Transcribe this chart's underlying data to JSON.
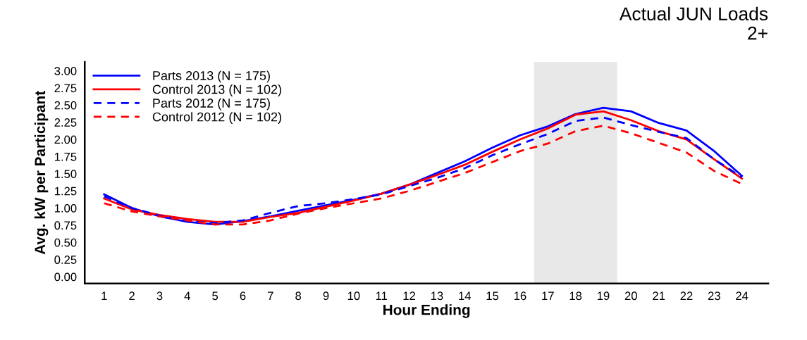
{
  "chart_data": {
    "type": "line",
    "title": "Actual JUN Loads\n2+",
    "xlabel": "Hour Ending",
    "ylabel": "Avg. kW per Participant",
    "x": [
      1,
      2,
      3,
      4,
      5,
      6,
      7,
      8,
      9,
      10,
      11,
      12,
      13,
      14,
      15,
      16,
      17,
      18,
      19,
      20,
      21,
      22,
      23,
      24
    ],
    "series": [
      {
        "name": "Parts 2013 (N = 175)",
        "color": "#0000ff",
        "line_style": "solid",
        "values": [
          1.2,
          1.0,
          0.88,
          0.8,
          0.76,
          0.81,
          0.88,
          0.96,
          1.04,
          1.12,
          1.21,
          1.34,
          1.51,
          1.68,
          1.88,
          2.06,
          2.19,
          2.37,
          2.46,
          2.41,
          2.24,
          2.13,
          1.83,
          1.47
        ]
      },
      {
        "name": "Control 2013 (N = 102)",
        "color": "#ff0000",
        "line_style": "solid",
        "values": [
          1.14,
          0.98,
          0.9,
          0.84,
          0.8,
          0.8,
          0.87,
          0.93,
          1.02,
          1.11,
          1.21,
          1.34,
          1.48,
          1.63,
          1.82,
          2.0,
          2.16,
          2.36,
          2.41,
          2.28,
          2.12,
          2.0,
          1.71,
          1.43
        ]
      },
      {
        "name": "Parts 2012 (N = 175)",
        "color": "#0000ff",
        "line_style": "dashed",
        "values": [
          1.17,
          1.0,
          0.89,
          0.81,
          0.78,
          0.82,
          0.93,
          1.03,
          1.07,
          1.13,
          1.2,
          1.32,
          1.44,
          1.58,
          1.77,
          1.93,
          2.08,
          2.27,
          2.32,
          2.21,
          2.11,
          2.02,
          1.71,
          1.45
        ]
      },
      {
        "name": "Control 2012 (N = 102)",
        "color": "#ff0000",
        "line_style": "dashed",
        "values": [
          1.07,
          0.95,
          0.88,
          0.82,
          0.76,
          0.76,
          0.82,
          0.92,
          1.0,
          1.07,
          1.14,
          1.25,
          1.38,
          1.51,
          1.67,
          1.83,
          1.94,
          2.12,
          2.2,
          2.09,
          1.95,
          1.81,
          1.54,
          1.35
        ]
      }
    ],
    "xlim": [
      0.3,
      24.95
    ],
    "xticks": [
      1,
      2,
      3,
      4,
      5,
      6,
      7,
      8,
      9,
      10,
      11,
      12,
      13,
      14,
      15,
      16,
      17,
      18,
      19,
      20,
      21,
      22,
      23,
      24
    ],
    "ylim": [
      -0.1,
      3.13
    ],
    "yticks": [
      {
        "value": 0,
        "label": "0.00"
      },
      {
        "value": 0.25,
        "label": "0.25"
      },
      {
        "value": 0.5,
        "label": "0.50"
      },
      {
        "value": 0.75,
        "label": "0.75"
      },
      {
        "value": 1,
        "label": "1.00"
      },
      {
        "value": 1.25,
        "label": "1.25"
      },
      {
        "value": 1.5,
        "label": "1.50"
      },
      {
        "value": 1.75,
        "label": "1.75"
      },
      {
        "value": 2,
        "label": "2.00"
      },
      {
        "value": 2.25,
        "label": "2.25"
      },
      {
        "value": 2.5,
        "label": "2.50"
      },
      {
        "value": 2.75,
        "label": "2.75"
      },
      {
        "value": 3,
        "label": "3.00"
      }
    ],
    "bands": [
      {
        "axis": "x",
        "from": 16.5,
        "to": 19.5,
        "color": "#e8e8e8"
      }
    ],
    "grid": false,
    "legend": "top left"
  }
}
